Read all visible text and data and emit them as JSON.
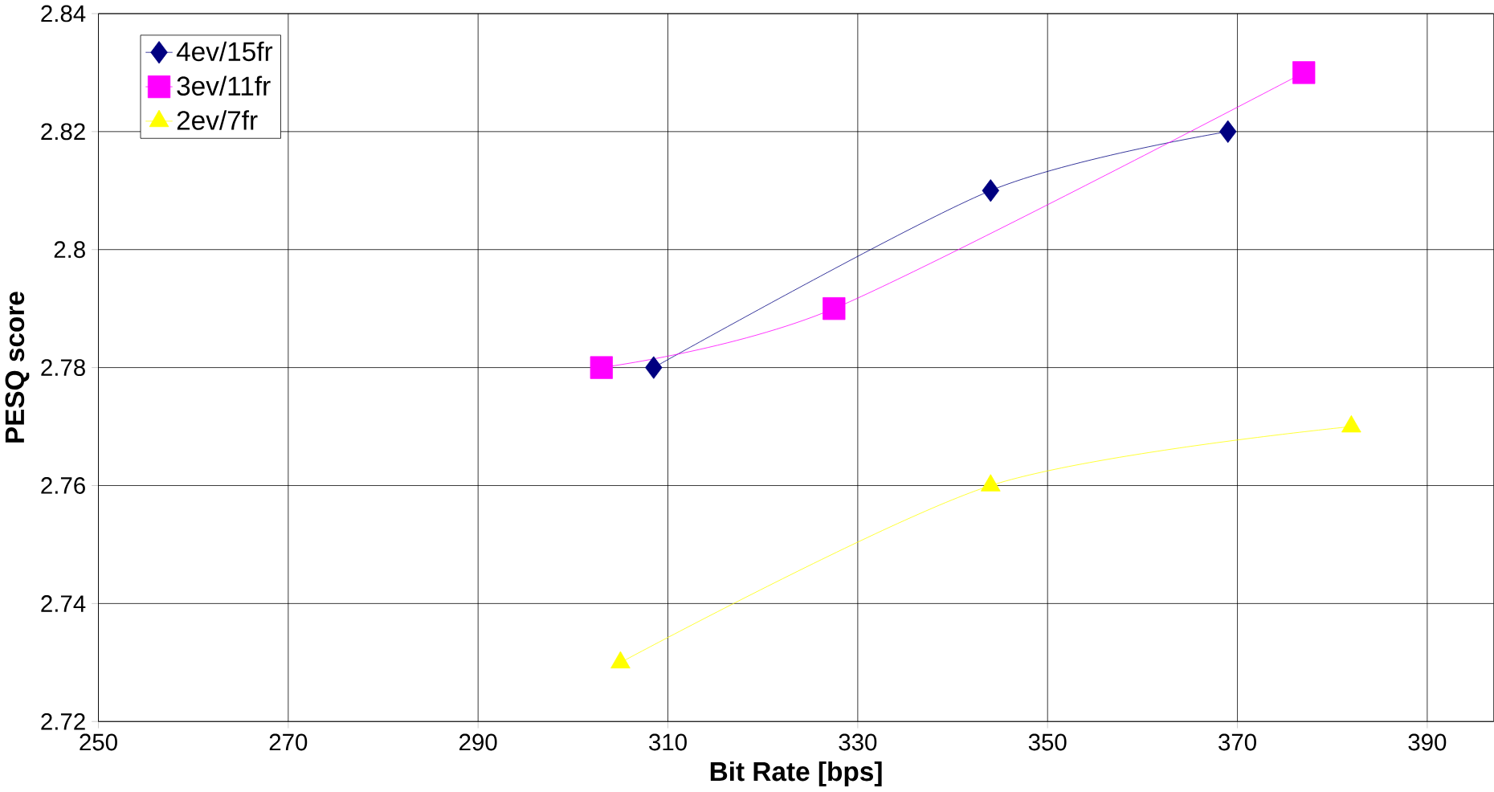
{
  "chart_data": {
    "type": "line",
    "xlabel": "Bit Rate [bps]",
    "ylabel": "PESQ score",
    "xlim": [
      250,
      397
    ],
    "xticks": [
      250,
      270,
      290,
      310,
      330,
      350,
      370,
      390
    ],
    "ylim": [
      2.72,
      2.84
    ],
    "yticks": [
      2.72,
      2.74,
      2.76,
      2.78,
      2.8,
      2.82,
      2.84
    ],
    "grid": true,
    "legend": "top left",
    "series": [
      {
        "name": "4ev/15fr",
        "color": "#000080",
        "marker": "diamond",
        "x": [
          308.5,
          344,
          369
        ],
        "values": [
          2.78,
          2.81,
          2.82
        ]
      },
      {
        "name": "3ev/11fr",
        "color": "#ff00ff",
        "marker": "square",
        "x": [
          303,
          327.5,
          377
        ],
        "values": [
          2.78,
          2.79,
          2.83
        ]
      },
      {
        "name": "2ev/7fr",
        "color": "#ffff00",
        "marker": "triangle",
        "x": [
          305,
          344,
          382
        ],
        "values": [
          2.73,
          2.76,
          2.77
        ]
      }
    ]
  }
}
